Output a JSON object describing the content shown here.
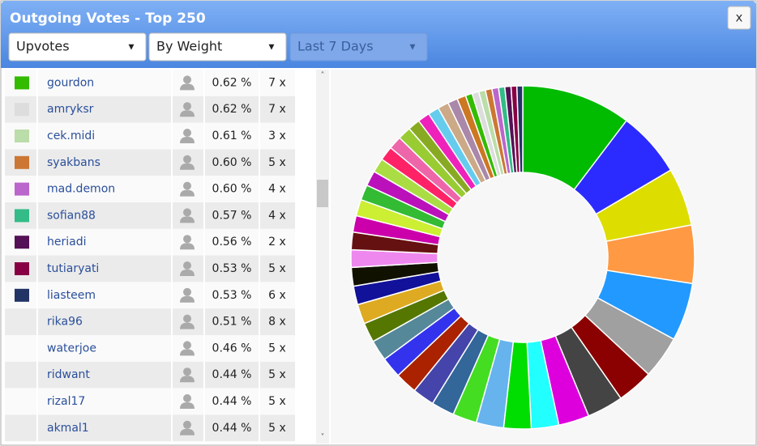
{
  "header": {
    "title": "Outgoing Votes - Top 250",
    "close": "x"
  },
  "filters": [
    "Upvotes",
    "By Weight",
    "Last 7 Days"
  ],
  "table": {
    "rows": [
      {
        "name": "gourdon",
        "percent": "0.62 %",
        "count": "7 x",
        "color": "#33bb00"
      },
      {
        "name": "amryksr",
        "percent": "0.62 %",
        "count": "7 x",
        "color": "#dddddd"
      },
      {
        "name": "cek.midi",
        "percent": "0.61 %",
        "count": "3 x",
        "color": "#bbddaa"
      },
      {
        "name": "syakbans",
        "percent": "0.60 %",
        "count": "5 x",
        "color": "#cc7733"
      },
      {
        "name": "mad.demon",
        "percent": "0.60 %",
        "count": "4 x",
        "color": "#bb66cc"
      },
      {
        "name": "sofian88",
        "percent": "0.57 %",
        "count": "4 x",
        "color": "#33bb88"
      },
      {
        "name": "heriadi",
        "percent": "0.56 %",
        "count": "2 x",
        "color": "#551155"
      },
      {
        "name": "tutiaryati",
        "percent": "0.53 %",
        "count": "5 x",
        "color": "#880044"
      },
      {
        "name": "liasteem",
        "percent": "0.53 %",
        "count": "6 x",
        "color": "#223366"
      },
      {
        "name": "rika96",
        "percent": "0.51 %",
        "count": "8 x"
      },
      {
        "name": "waterjoe",
        "percent": "0.46 %",
        "count": "5 x"
      },
      {
        "name": "ridwant",
        "percent": "0.44 %",
        "count": "5 x"
      },
      {
        "name": "rizal17",
        "percent": "0.44 %",
        "count": "5 x"
      },
      {
        "name": "akmal1",
        "percent": "0.44 %",
        "count": "5 x"
      }
    ]
  },
  "chart_data": {
    "type": "pie",
    "values": [
      10,
      6,
      5.3,
      5.3,
      5.3,
      3.9,
      3.3,
      3.3,
      2.8,
      2.5,
      2.5,
      2.5,
      2.2,
      2.1,
      2.0,
      2.0,
      1.9,
      1.9,
      1.8,
      1.8,
      1.7,
      1.7,
      1.6,
      1.6,
      1.5,
      1.5,
      1.4,
      1.4,
      1.3,
      1.3,
      1.2,
      1.2,
      1.1,
      1.1,
      1.0,
      1.0,
      0.9,
      0.8,
      0.62,
      0.62,
      0.61,
      0.6,
      0.6,
      0.57,
      0.56,
      0.53,
      0.53
    ],
    "colors": [
      "#00bb00",
      "#2b2bff",
      "#dddd00",
      "#ff9944",
      "#2299ff",
      "#a0a0a0",
      "#8b0000",
      "#444444",
      "#dd00dd",
      "#22ffff",
      "#00dd00",
      "#66b3ee",
      "#44dd22",
      "#336699",
      "#4444aa",
      "#aa2200",
      "#3333ee",
      "#558899",
      "#557700",
      "#ddaa22",
      "#111199",
      "#111100",
      "#ee88ee",
      "#661111",
      "#cc00aa",
      "#ccee33",
      "#33bb33",
      "#bb11bb",
      "#aadd44",
      "#ff2266",
      "#ee66aa",
      "#99cc33",
      "#88aa22",
      "#ee22bb",
      "#66ccee",
      "#ccaa88",
      "#aa88aa",
      "#cc7722",
      "#33bb00",
      "#dddddd",
      "#bbddaa",
      "#cc7733",
      "#bb66cc",
      "#33bb88",
      "#551155",
      "#880044",
      "#223366"
    ]
  }
}
